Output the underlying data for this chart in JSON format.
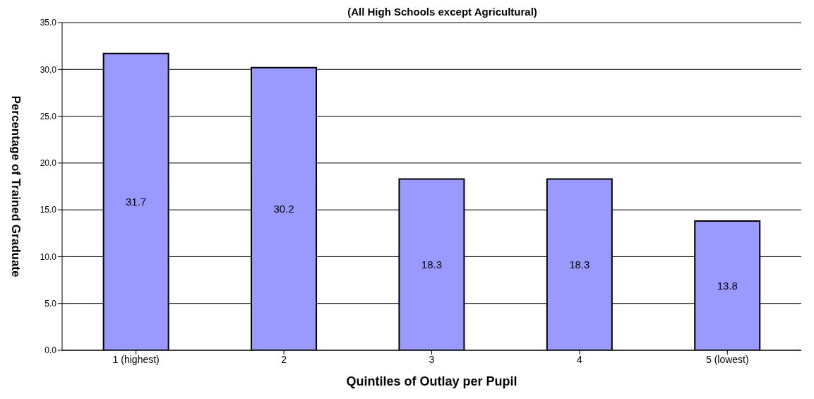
{
  "chart_data": {
    "type": "bar",
    "title": "(All High Schools except Agricultural)",
    "xlabel": "Quintiles of Outlay per Pupil",
    "ylabel": "Percentage of Trained Graduate",
    "categories": [
      "1 (highest)",
      "2",
      "3",
      "4",
      "5 (lowest)"
    ],
    "values": [
      31.7,
      30.2,
      18.3,
      18.3,
      13.8
    ],
    "color": "#9999ff",
    "data_labels": true,
    "ylim": [
      0,
      35
    ],
    "yticks": [
      {
        "value": 0,
        "label": "0.0"
      },
      {
        "value": 5,
        "label": "5.0"
      },
      {
        "value": 10,
        "label": "10.0"
      },
      {
        "value": 15,
        "label": "15.0"
      },
      {
        "value": 20,
        "label": "20.0"
      },
      {
        "value": 25,
        "label": "25.0"
      },
      {
        "value": 30,
        "label": "30.0"
      },
      {
        "value": 35,
        "label": "35.0"
      }
    ],
    "grid": "y"
  }
}
